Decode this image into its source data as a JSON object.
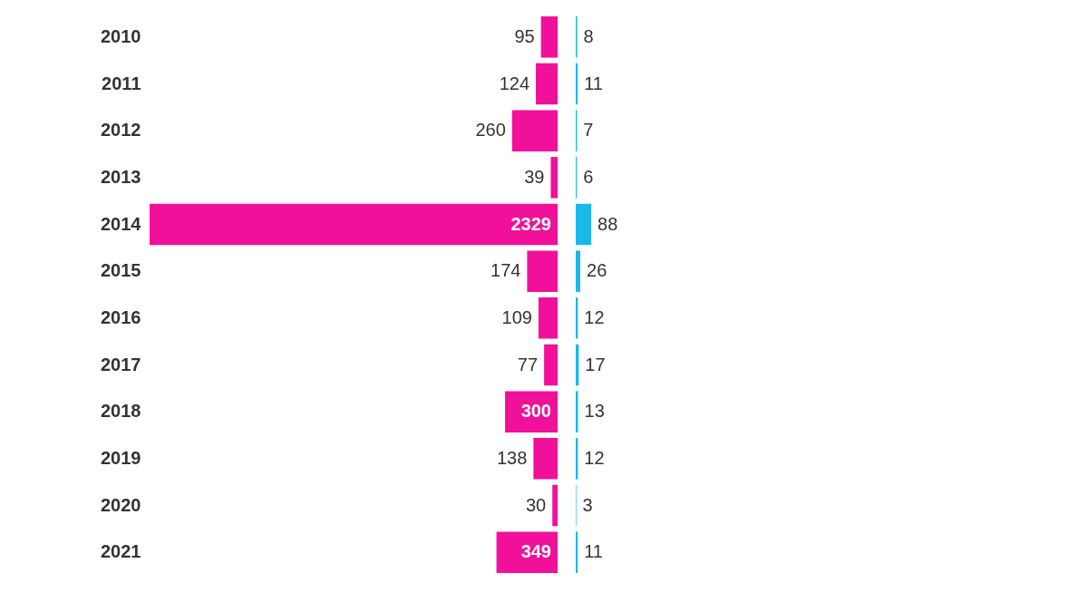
{
  "chart_data": [
    {
      "type": "bar",
      "orientation": "horizontal",
      "categories": [
        "2010",
        "2011",
        "2012",
        "2013",
        "2014",
        "2015",
        "2016",
        "2017",
        "2018",
        "2019",
        "2020",
        "2021"
      ],
      "color": "#f0109a",
      "values": [
        95,
        124,
        260,
        39,
        2329,
        174,
        109,
        77,
        300,
        138,
        30,
        349
      ],
      "data_labels": true,
      "tick_labels": "y"
    },
    {
      "type": "bar",
      "orientation": "horizontal",
      "categories": [
        "2010",
        "2011",
        "2012",
        "2013",
        "2014",
        "2015",
        "2016",
        "2017",
        "2018",
        "2019",
        "2020",
        "2021"
      ],
      "color": "#1bb8e8",
      "values": [
        8,
        11,
        7,
        6,
        88,
        26,
        12,
        17,
        13,
        12,
        3,
        11
      ],
      "data_labels": true,
      "tick_labels": false
    }
  ]
}
